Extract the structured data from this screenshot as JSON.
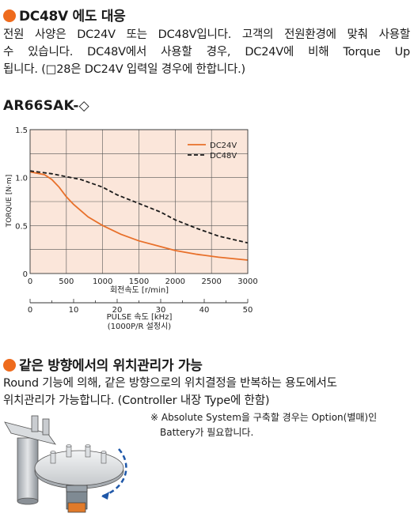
{
  "sec1": {
    "title": "DC48V 에도 대응",
    "line1": "전원 사양은 DC24V 또는 DC48V입니다. 고객의 전원환경에 맞춰 사용할",
    "line2": "수 있습니다. DC48V에서 사용할 경우, DC24V에 비해 Torque Up",
    "line3": "됩니다. (□28은 DC24V 입력일 경우에 한합니다.)"
  },
  "model": "AR66SAK-◇",
  "chart_data": {
    "type": "line",
    "ylabel": "TORQUE [N·m]",
    "xlabel": "회전속도 [r/min]",
    "x2label_1": "PULSE 속도 [kHz]",
    "x2label_2": "(1000P/R 설정시)",
    "xlim": [
      0,
      3000
    ],
    "ylim": [
      0,
      1.5
    ],
    "x_ticks": [
      "0",
      "500",
      "1000",
      "1500",
      "2000",
      "2500",
      "3000"
    ],
    "y_ticks": [
      "0",
      "0.5",
      "1.0",
      "1.5"
    ],
    "x2_ticks": [
      "0",
      "10",
      "20",
      "30",
      "40",
      "50"
    ],
    "legend_position": "top-right",
    "grid": true,
    "series": [
      {
        "name": "DC24V",
        "color": "#e8702a",
        "style": "solid",
        "x": [
          0,
          200,
          300,
          400,
          500,
          600,
          800,
          1000,
          1250,
          1500,
          1800,
          2000,
          2300,
          2600,
          3000
        ],
        "y": [
          1.06,
          1.03,
          0.98,
          0.9,
          0.8,
          0.72,
          0.59,
          0.5,
          0.41,
          0.34,
          0.28,
          0.24,
          0.2,
          0.17,
          0.14
        ]
      },
      {
        "name": "DC48V",
        "color": "#1a1a1a",
        "style": "dashed",
        "x": [
          0,
          300,
          500,
          700,
          1000,
          1200,
          1500,
          1800,
          2000,
          2300,
          2600,
          3000
        ],
        "y": [
          1.07,
          1.04,
          1.01,
          0.98,
          0.9,
          0.82,
          0.73,
          0.64,
          0.56,
          0.47,
          0.39,
          0.32
        ]
      }
    ]
  },
  "sec2": {
    "title": "같은 방향에서의 위치관리가 가능",
    "line1": "Round 기능에 의해, 같은 방향으로의 위치결정을 반복하는 용도에서도",
    "line2": "위치관리가 가능합니다. (Controller 내장 Type에 한함)",
    "note1": "※ Absolute System을 구축할 경우는 Option(별매)인",
    "note2": "Battery가 필요합니다."
  }
}
